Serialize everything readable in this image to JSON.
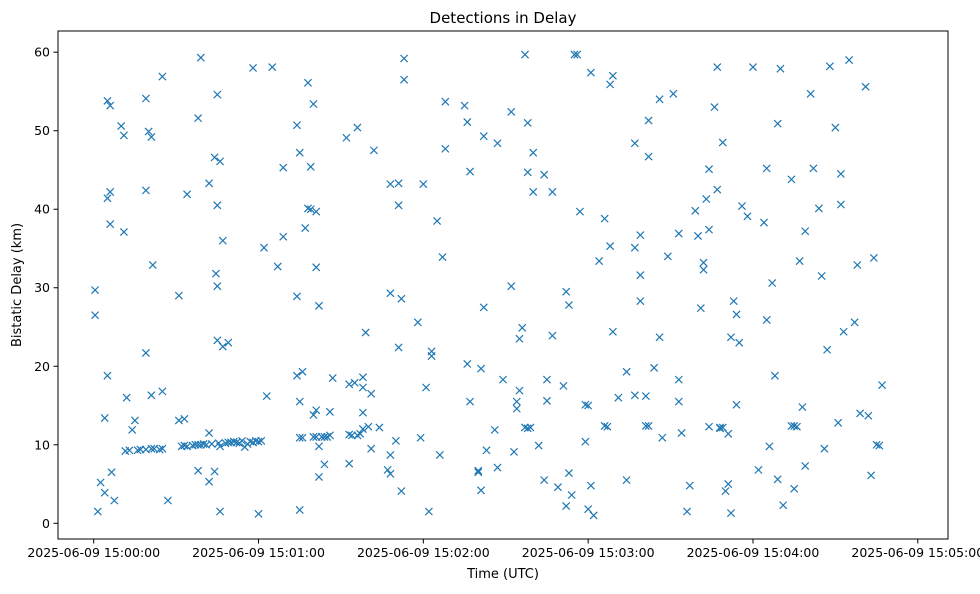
{
  "chart_data": {
    "type": "scatter",
    "title": "Detections in Delay",
    "xlabel": "Time (UTC)",
    "ylabel": "Bistatic Delay (km)",
    "marker": "x",
    "color": "#1f77b4",
    "grid": false,
    "xlim_seconds": [
      -13,
      311
    ],
    "ylim": [
      -2,
      62.7
    ],
    "x_ticks": [
      {
        "seconds": 0,
        "label": "2025-06-09 15:00:00"
      },
      {
        "seconds": 60,
        "label": "2025-06-09 15:01:00"
      },
      {
        "seconds": 120,
        "label": "2025-06-09 15:02:00"
      },
      {
        "seconds": 180,
        "label": "2025-06-09 15:03:00"
      },
      {
        "seconds": 240,
        "label": "2025-06-09 15:04:00"
      },
      {
        "seconds": 300,
        "label": "2025-06-09 15:05:00"
      }
    ],
    "y_ticks": [
      0,
      10,
      20,
      30,
      40,
      50,
      60
    ],
    "x_unit": "seconds since 2025-06-09 15:00:00 UTC",
    "points": [
      [
        0.5,
        29.7
      ],
      [
        0.5,
        26.5
      ],
      [
        1.5,
        1.5
      ],
      [
        2.5,
        5.2
      ],
      [
        4,
        3.9
      ],
      [
        4,
        13.4
      ],
      [
        5,
        53.8
      ],
      [
        5,
        41.4
      ],
      [
        5,
        18.8
      ],
      [
        6,
        53.2
      ],
      [
        6,
        42.2
      ],
      [
        6,
        38.1
      ],
      [
        6.5,
        6.5
      ],
      [
        7.5,
        2.9
      ],
      [
        10,
        50.6
      ],
      [
        11,
        49.4
      ],
      [
        11,
        37.1
      ],
      [
        12,
        16
      ],
      [
        11.5,
        9.2
      ],
      [
        13,
        9.3
      ],
      [
        14,
        11.9
      ],
      [
        15,
        13.1
      ],
      [
        16,
        9.3
      ],
      [
        17,
        9.4
      ],
      [
        19,
        54.1
      ],
      [
        19,
        42.4
      ],
      [
        19,
        21.7
      ],
      [
        19,
        9.4
      ],
      [
        20,
        49.9
      ],
      [
        21,
        49.2
      ],
      [
        21,
        9.5
      ],
      [
        21,
        16.3
      ],
      [
        21.5,
        32.9
      ],
      [
        22,
        9.5
      ],
      [
        24,
        9.4
      ],
      [
        25,
        56.9
      ],
      [
        25,
        16.8
      ],
      [
        25,
        9.5
      ],
      [
        27,
        2.9
      ],
      [
        31,
        29
      ],
      [
        31,
        13.1
      ],
      [
        32,
        9.8
      ],
      [
        33,
        13.3
      ],
      [
        33,
        9.9
      ],
      [
        34,
        41.9
      ],
      [
        34,
        9.8
      ],
      [
        36,
        9.9
      ],
      [
        37,
        10
      ],
      [
        38,
        51.6
      ],
      [
        38,
        6.7
      ],
      [
        38,
        10
      ],
      [
        39,
        59.3
      ],
      [
        39,
        10
      ],
      [
        40,
        10.1
      ],
      [
        41,
        10
      ],
      [
        42,
        43.3
      ],
      [
        42,
        11.5
      ],
      [
        42,
        5.3
      ],
      [
        43,
        10.1
      ],
      [
        44,
        46.6
      ],
      [
        44,
        6.6
      ],
      [
        44.5,
        31.8
      ],
      [
        45,
        54.6
      ],
      [
        45,
        40.5
      ],
      [
        45,
        30.2
      ],
      [
        45,
        23.3
      ],
      [
        45.5,
        10.2
      ],
      [
        46,
        46.1
      ],
      [
        46,
        9.8
      ],
      [
        46,
        1.5
      ],
      [
        47,
        36
      ],
      [
        47,
        22.5
      ],
      [
        48,
        10.2
      ],
      [
        49,
        10.3
      ],
      [
        49,
        23
      ],
      [
        50,
        10.3
      ],
      [
        51,
        10.4
      ],
      [
        52,
        10.3
      ],
      [
        53,
        10.2
      ],
      [
        54,
        10.5
      ],
      [
        55,
        9.7
      ],
      [
        56,
        10.1
      ],
      [
        57,
        10.4
      ],
      [
        58,
        58
      ],
      [
        58,
        10.3
      ],
      [
        59,
        10.5
      ],
      [
        60,
        1.2
      ],
      [
        60,
        10.4
      ],
      [
        61,
        10.5
      ],
      [
        62,
        35.1
      ],
      [
        63,
        16.2
      ],
      [
        65,
        58.1
      ],
      [
        67,
        32.7
      ],
      [
        69,
        45.3
      ],
      [
        69,
        36.5
      ],
      [
        74,
        50.7
      ],
      [
        74,
        28.9
      ],
      [
        74,
        18.8
      ],
      [
        75,
        47.2
      ],
      [
        75,
        15.5
      ],
      [
        75,
        10.9
      ],
      [
        75,
        1.7
      ],
      [
        76,
        19.3
      ],
      [
        76,
        10.9
      ],
      [
        77,
        37.6
      ],
      [
        78,
        56.1
      ],
      [
        78,
        40.1
      ],
      [
        79,
        45.4
      ],
      [
        79,
        40
      ],
      [
        80,
        53.4
      ],
      [
        80,
        11
      ],
      [
        80,
        13.8
      ],
      [
        81,
        39.7
      ],
      [
        81,
        32.6
      ],
      [
        81,
        14.4
      ],
      [
        81,
        11
      ],
      [
        82,
        27.7
      ],
      [
        82,
        9.8
      ],
      [
        82,
        5.9
      ],
      [
        83,
        11
      ],
      [
        84,
        11
      ],
      [
        84,
        7.5
      ],
      [
        85,
        11
      ],
      [
        86,
        11.2
      ],
      [
        86,
        14.2
      ],
      [
        87,
        18.5
      ],
      [
        92,
        49.1
      ],
      [
        93,
        17.7
      ],
      [
        93,
        11.3
      ],
      [
        93,
        7.6
      ],
      [
        94,
        11.2
      ],
      [
        95,
        17.9
      ],
      [
        96,
        50.4
      ],
      [
        96,
        11.2
      ],
      [
        97,
        11.4
      ],
      [
        98,
        17.3
      ],
      [
        98,
        14.1
      ],
      [
        98,
        18.6
      ],
      [
        98,
        12
      ],
      [
        99,
        24.3
      ],
      [
        100,
        12.3
      ],
      [
        101,
        9.5
      ],
      [
        101,
        16.5
      ],
      [
        102,
        47.5
      ],
      [
        104,
        12.2
      ],
      [
        107,
        6.8
      ],
      [
        108,
        43.2
      ],
      [
        108,
        29.3
      ],
      [
        108,
        6.3
      ],
      [
        108,
        8.7
      ],
      [
        110,
        10.5
      ],
      [
        111,
        43.3
      ],
      [
        111,
        40.5
      ],
      [
        111,
        22.4
      ],
      [
        112,
        28.6
      ],
      [
        112,
        4.1
      ],
      [
        113,
        59.2
      ],
      [
        113,
        56.5
      ],
      [
        118,
        25.6
      ],
      [
        119,
        10.9
      ],
      [
        120,
        43.2
      ],
      [
        121,
        17.3
      ],
      [
        122,
        1.5
      ],
      [
        123,
        21.9
      ],
      [
        123,
        21.3
      ],
      [
        125,
        38.5
      ],
      [
        126,
        8.7
      ],
      [
        127,
        33.9
      ],
      [
        128,
        53.7
      ],
      [
        128,
        47.7
      ],
      [
        135,
        53.2
      ],
      [
        136,
        20.3
      ],
      [
        136,
        51.1
      ],
      [
        137,
        44.8
      ],
      [
        137,
        15.5
      ],
      [
        140,
        6.7
      ],
      [
        140,
        6.5
      ],
      [
        141,
        19.7
      ],
      [
        141,
        4.2
      ],
      [
        142,
        49.3
      ],
      [
        142,
        27.5
      ],
      [
        143,
        9.3
      ],
      [
        146,
        11.9
      ],
      [
        147,
        48.4
      ],
      [
        147,
        7.1
      ],
      [
        149,
        18.3
      ],
      [
        152,
        52.4
      ],
      [
        152,
        30.2
      ],
      [
        153,
        9.1
      ],
      [
        154,
        14.6
      ],
      [
        154,
        15.5
      ],
      [
        155,
        16.9
      ],
      [
        155,
        23.5
      ],
      [
        156,
        24.9
      ],
      [
        157,
        59.7
      ],
      [
        157,
        12.2
      ],
      [
        158,
        51
      ],
      [
        158,
        44.7
      ],
      [
        158,
        12.1
      ],
      [
        159,
        12.2
      ],
      [
        160,
        47.2
      ],
      [
        160,
        42.2
      ],
      [
        162,
        9.9
      ],
      [
        164,
        44.4
      ],
      [
        164,
        5.5
      ],
      [
        165,
        15.6
      ],
      [
        165,
        18.3
      ],
      [
        167,
        42.2
      ],
      [
        167,
        23.9
      ],
      [
        169,
        4.6
      ],
      [
        171,
        17.5
      ],
      [
        172,
        2.2
      ],
      [
        172,
        29.5
      ],
      [
        173,
        27.8
      ],
      [
        173,
        6.4
      ],
      [
        174,
        3.6
      ],
      [
        175,
        59.7
      ],
      [
        176,
        59.7
      ],
      [
        177,
        39.7
      ],
      [
        179,
        10.4
      ],
      [
        179,
        15.1
      ],
      [
        180,
        1.8
      ],
      [
        180,
        15
      ],
      [
        181,
        57.4
      ],
      [
        181,
        4.8
      ],
      [
        182,
        1
      ],
      [
        184,
        33.4
      ],
      [
        186,
        38.8
      ],
      [
        186,
        12.4
      ],
      [
        187,
        12.3
      ],
      [
        188,
        55.9
      ],
      [
        188,
        35.3
      ],
      [
        189,
        57
      ],
      [
        189,
        24.4
      ],
      [
        191,
        16
      ],
      [
        194,
        5.5
      ],
      [
        194,
        19.3
      ],
      [
        197,
        48.4
      ],
      [
        197,
        35.1
      ],
      [
        197,
        16.3
      ],
      [
        199,
        36.7
      ],
      [
        199,
        31.6
      ],
      [
        199,
        28.3
      ],
      [
        201,
        16.2
      ],
      [
        201,
        12.4
      ],
      [
        202,
        12.4
      ],
      [
        202,
        51.3
      ],
      [
        202,
        46.7
      ],
      [
        204,
        19.8
      ],
      [
        206,
        23.7
      ],
      [
        206,
        54
      ],
      [
        207,
        10.9
      ],
      [
        209,
        34
      ],
      [
        211,
        54.7
      ],
      [
        213,
        36.9
      ],
      [
        213,
        18.3
      ],
      [
        213,
        15.5
      ],
      [
        214,
        11.5
      ],
      [
        216,
        1.5
      ],
      [
        217,
        4.8
      ],
      [
        219,
        39.8
      ],
      [
        220,
        36.6
      ],
      [
        221,
        27.4
      ],
      [
        222,
        33.2
      ],
      [
        222,
        32.3
      ],
      [
        223,
        41.3
      ],
      [
        224,
        45.1
      ],
      [
        224,
        37.4
      ],
      [
        224,
        12.3
      ],
      [
        226,
        53
      ],
      [
        227,
        42.5
      ],
      [
        227,
        58.1
      ],
      [
        228,
        12.2
      ],
      [
        228,
        12.1
      ],
      [
        229,
        48.5
      ],
      [
        229,
        12.2
      ],
      [
        230,
        4.1
      ],
      [
        231,
        11.4
      ],
      [
        231,
        5
      ],
      [
        232,
        1.3
      ],
      [
        232,
        23.7
      ],
      [
        233,
        28.3
      ],
      [
        234,
        15.1
      ],
      [
        234,
        26.6
      ],
      [
        235,
        23
      ],
      [
        236,
        40.4
      ],
      [
        238,
        39.1
      ],
      [
        240,
        58.1
      ],
      [
        242,
        6.8
      ],
      [
        244,
        38.3
      ],
      [
        245,
        45.2
      ],
      [
        245,
        25.9
      ],
      [
        246,
        9.8
      ],
      [
        247,
        30.6
      ],
      [
        248,
        18.8
      ],
      [
        249,
        50.9
      ],
      [
        249,
        5.6
      ],
      [
        250,
        57.9
      ],
      [
        251,
        2.3
      ],
      [
        254,
        12.4
      ],
      [
        254,
        43.8
      ],
      [
        255,
        12.4
      ],
      [
        255,
        4.4
      ],
      [
        256,
        12.3
      ],
      [
        257,
        33.4
      ],
      [
        258,
        14.8
      ],
      [
        259,
        7.3
      ],
      [
        259,
        37.2
      ],
      [
        261,
        54.7
      ],
      [
        262,
        45.2
      ],
      [
        264,
        40.1
      ],
      [
        265,
        31.5
      ],
      [
        266,
        9.5
      ],
      [
        267,
        22.1
      ],
      [
        268,
        58.2
      ],
      [
        270,
        50.4
      ],
      [
        271,
        12.8
      ],
      [
        272,
        44.5
      ],
      [
        272,
        40.6
      ],
      [
        273,
        24.4
      ],
      [
        275,
        59
      ],
      [
        277,
        25.6
      ],
      [
        278,
        32.9
      ],
      [
        279,
        14
      ],
      [
        281,
        55.6
      ],
      [
        282,
        13.7
      ],
      [
        283,
        6.1
      ],
      [
        284,
        33.8
      ],
      [
        285,
        10
      ],
      [
        286,
        9.9
      ],
      [
        287,
        17.6
      ]
    ]
  }
}
